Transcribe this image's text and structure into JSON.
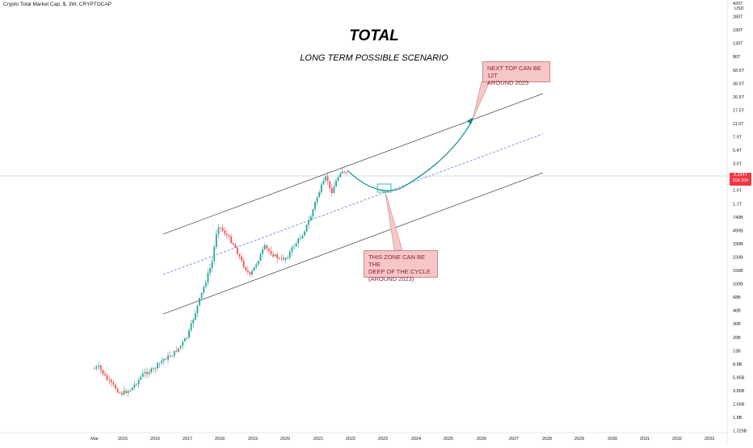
{
  "header": {
    "symbol": "Crypto Total Market Cap, $, 3W, CRYPTOCAP"
  },
  "annotations": {
    "title": "TOTAL",
    "subtitle": "LONG TERM POSSIBLE SCENARIO",
    "next_top": "NEXT TOP CAN BE 12T\nAROUND 2025",
    "deep_zone": "THIS ZONE CAN BE THE\nDEEP OF THE CYCLE\n(AROUND 2023)"
  },
  "price_tag": {
    "value": "2.224T",
    "countdown": "20d 20h"
  },
  "colors": {
    "up": "#26a69a",
    "down": "#ef5350",
    "channel": "#555555",
    "midline": "#5b7fe0",
    "projection": "#0b8a8a",
    "callout_fill": "#f7c6c7",
    "price_tag": "#f23645"
  },
  "chart_data": {
    "type": "candlestick",
    "title": "TOTAL",
    "subtitle": "LONG TERM POSSIBLE SCENARIO",
    "y_scale": "log",
    "y_axis_unit": "USD",
    "y_ticks": [
      "420T",
      "280T",
      "190T",
      "130T",
      "86T",
      "58.5T",
      "38.5T",
      "26.5T",
      "17.5T",
      "11.5T",
      "7.9T",
      "5.4T",
      "3.6T",
      "2.4T",
      "1.6T",
      "1.1T",
      "740B",
      "490B",
      "330B",
      "220B",
      "150B",
      "100B",
      "68B",
      "46B",
      "30B",
      "20B",
      "13B",
      "8.6B",
      "5.85B",
      "3.85B",
      "2.65B",
      "1.8B",
      "1.225B"
    ],
    "x_ticks": [
      "Mar",
      "2015",
      "2016",
      "2017",
      "2018",
      "2019",
      "2020",
      "2021",
      "2022",
      "2023",
      "2024",
      "2025",
      "2026",
      "2027",
      "2028",
      "2029",
      "2030",
      "2031",
      "2032",
      "2033"
    ],
    "last_value": "2.224T",
    "series_points": [
      {
        "date": "2014-03",
        "value": "8.6B"
      },
      {
        "date": "2015-01",
        "value": "4B"
      },
      {
        "date": "2016-01",
        "value": "7B"
      },
      {
        "date": "2017-01",
        "value": "17B"
      },
      {
        "date": "2017-06",
        "value": "100B"
      },
      {
        "date": "2018-01",
        "value": "740B"
      },
      {
        "date": "2018-04",
        "value": "300B"
      },
      {
        "date": "2018-12",
        "value": "110B"
      },
      {
        "date": "2019-06",
        "value": "330B"
      },
      {
        "date": "2020-03",
        "value": "150B"
      },
      {
        "date": "2020-12",
        "value": "700B"
      },
      {
        "date": "2021-05",
        "value": "2.4T"
      },
      {
        "date": "2021-11",
        "value": "3T"
      },
      {
        "date": "2022-01",
        "value": "2.224T"
      }
    ],
    "projection": [
      {
        "date": "2022-01",
        "value": "2.224T"
      },
      {
        "date": "2023",
        "value": "1.6T"
      },
      {
        "date": "2025",
        "value": "12T"
      }
    ]
  }
}
